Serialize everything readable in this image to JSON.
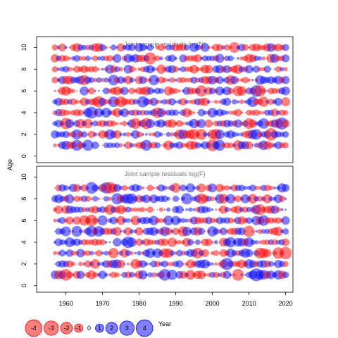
{
  "chart_data": [
    {
      "type": "scatter",
      "subtype": "bubble",
      "title": "Joint sample residuals log(N)",
      "xlabel": "",
      "ylabel": "Age",
      "xlim": [
        1952,
        2022
      ],
      "ylim": [
        -0.6,
        11.0
      ],
      "xticks": [
        1960,
        1970,
        1980,
        1990,
        2000,
        2010,
        2020
      ],
      "yticks": [
        0,
        2,
        4,
        6,
        8,
        10
      ],
      "x_range": [
        1957,
        2020
      ],
      "ages": [
        1,
        2,
        3,
        4,
        5,
        6,
        7,
        8,
        9,
        10
      ],
      "seed": 11,
      "grid": false,
      "colors": {
        "positive": "#0000ff",
        "negative": "#ff0000"
      }
    },
    {
      "type": "scatter",
      "subtype": "bubble",
      "title": "Joint sample residuals log(F)",
      "xlabel": "Year",
      "ylabel": "Age",
      "xlim": [
        1952,
        2022
      ],
      "ylim": [
        -0.6,
        11.0
      ],
      "xticks": [
        1960,
        1970,
        1980,
        1990,
        2000,
        2010,
        2020
      ],
      "yticks": [
        0,
        2,
        4,
        6,
        8,
        10
      ],
      "x_range": [
        1957,
        2020
      ],
      "ages": [
        1,
        2,
        3,
        4,
        5,
        6,
        7,
        8,
        9
      ],
      "seed": 29,
      "grid": false,
      "colors": {
        "positive": "#0000ff",
        "negative": "#ff0000"
      }
    }
  ],
  "legend": {
    "values": [
      -4,
      -3,
      -2,
      -1,
      0,
      1,
      2,
      3,
      4
    ],
    "labels": [
      "-4",
      "-3",
      "-2",
      "-1",
      "0",
      "1",
      "2",
      "3",
      "4"
    ],
    "placement": "bottom-left"
  },
  "axes": {
    "ylabel": "Age",
    "xlabel": "Year"
  }
}
